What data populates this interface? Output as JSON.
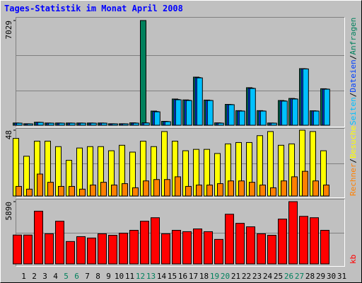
{
  "title": "Tages-Statistik im Monat April 2008",
  "legend_separator": "/",
  "chart_data": [
    {
      "type": "bar",
      "ylim": [
        0,
        7029
      ],
      "yticks": [
        7029
      ],
      "series": [
        {
          "name": "Anfragen",
          "color": "#00805c",
          "values": [
            150,
            100,
            200,
            150,
            150,
            150,
            150,
            150,
            150,
            100,
            100,
            160,
            7029,
            950,
            260,
            1760,
            1700,
            3230,
            1690,
            160,
            1400,
            980,
            2520,
            980,
            150,
            1660,
            1800,
            3800,
            970,
            2450,
            null
          ]
        },
        {
          "name": "Dateien",
          "color": "#0040ff",
          "values": [
            145,
            98,
            195,
            145,
            145,
            145,
            145,
            145,
            145,
            98,
            98,
            150,
            160,
            920,
            250,
            1730,
            1680,
            3200,
            1670,
            150,
            1390,
            960,
            2490,
            960,
            145,
            1640,
            1780,
            3790,
            960,
            2430,
            null
          ]
        },
        {
          "name": "Seiten",
          "color": "#00c0ff",
          "values": [
            140,
            95,
            190,
            140,
            140,
            140,
            140,
            140,
            140,
            95,
            95,
            140,
            150,
            900,
            240,
            1710,
            1660,
            3180,
            1660,
            140,
            1380,
            950,
            2470,
            950,
            140,
            1620,
            1760,
            3780,
            950,
            2420,
            null
          ]
        }
      ]
    },
    {
      "type": "bar",
      "ylim": [
        0,
        48
      ],
      "yticks": [
        48
      ],
      "series": [
        {
          "name": "Besuche",
          "color": "#ffff00",
          "values": [
            42,
            29,
            40,
            40,
            36,
            26,
            35,
            36,
            36,
            33,
            37,
            32,
            40,
            36,
            47,
            40,
            33,
            34,
            34,
            31,
            38,
            39,
            39,
            44,
            47,
            37,
            38,
            48,
            47,
            33,
            null
          ]
        },
        {
          "name": "Rechner",
          "color": "#ff8000",
          "values": [
            7,
            5,
            16,
            10,
            7,
            7,
            5,
            8,
            10,
            8,
            9,
            6,
            11,
            12,
            12,
            14,
            7,
            8,
            8,
            9,
            11,
            11,
            10,
            8,
            6,
            11,
            14,
            18,
            11,
            8,
            null
          ]
        }
      ]
    },
    {
      "type": "bar",
      "ylim": [
        0,
        5890
      ],
      "yticks": [
        5890
      ],
      "categories": [
        "1",
        "2",
        "3",
        "4",
        "5",
        "6",
        "7",
        "8",
        "9",
        "10",
        "11",
        "12",
        "13",
        "14",
        "15",
        "16",
        "17",
        "18",
        "19",
        "20",
        "21",
        "22",
        "23",
        "24",
        "25",
        "26",
        "27",
        "28",
        "29",
        "30",
        "31"
      ],
      "category_colors": [
        "#000000",
        "#000000",
        "#000000",
        "#000000",
        "#00805c",
        "#00805c",
        "#000000",
        "#000000",
        "#000000",
        "#000000",
        "#000000",
        "#00805c",
        "#00805c",
        "#000000",
        "#000000",
        "#000000",
        "#000000",
        "#000000",
        "#00805c",
        "#00805c",
        "#000000",
        "#000000",
        "#000000",
        "#000000",
        "#000000",
        "#00805c",
        "#00805c",
        "#000000",
        "#000000",
        "#000000",
        "#000000"
      ],
      "series": [
        {
          "name": "kb",
          "color": "#ff0000",
          "values": [
            2730,
            2730,
            4990,
            2850,
            4040,
            2120,
            2580,
            2450,
            2850,
            2710,
            2910,
            3180,
            4040,
            4370,
            2850,
            3180,
            3050,
            3310,
            3050,
            2320,
            4700,
            3840,
            3510,
            2850,
            2710,
            4240,
            5890,
            4500,
            4370,
            3180,
            null
          ]
        }
      ]
    }
  ]
}
